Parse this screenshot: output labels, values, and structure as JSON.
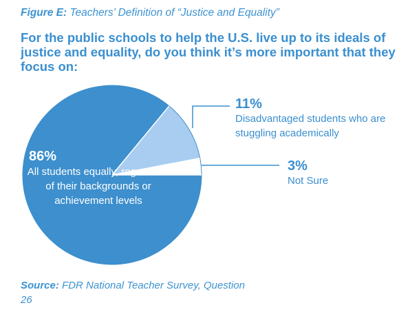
{
  "figure": {
    "label": "Figure E:",
    "title": "Teachers’ Definition of “Justice and Equality”"
  },
  "question": "For the public schools to help the U.S. live up to its ideals of justice and equality, do you think it’s more important that they focus on:",
  "source": {
    "label": "Source:",
    "text": "FDR National Teacher Survey, Question 26"
  },
  "chart_data": {
    "type": "pie",
    "title": "Teachers’ Definition of “Justice and Equality”",
    "slices": [
      {
        "label": "All students equally, regardless of their backgrounds or achievement levels",
        "value": 86,
        "value_label": "86%",
        "color": "#3d8fcd"
      },
      {
        "label": "Disadvantaged students who are stuggling academically",
        "value": 11,
        "value_label": "11%",
        "color": "#a9cdf0"
      },
      {
        "label": "Not Sure",
        "value": 3,
        "value_label": "3%",
        "color": "#ffffff"
      }
    ]
  },
  "colors": {
    "accent": "#3a8fd0",
    "slice_outline": "#3d8fcd"
  }
}
